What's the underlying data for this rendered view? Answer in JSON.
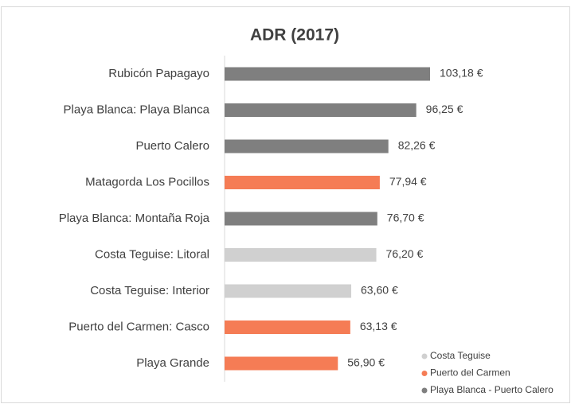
{
  "chart_data": {
    "type": "bar",
    "orientation": "horizontal",
    "title": "ADR (2017)",
    "categories": [
      "Rubicón Papagayo",
      "Playa Blanca: Playa Blanca",
      "Puerto Calero",
      "Matagorda Los Pocillos",
      "Playa Blanca: Montaña Roja",
      "Costa Teguise: Litoral",
      "Costa Teguise: Interior",
      "Puerto del Carmen: Casco",
      "Playa Grande"
    ],
    "values": [
      103.18,
      96.25,
      82.26,
      77.94,
      76.7,
      76.2,
      63.6,
      63.13,
      56.9
    ],
    "value_labels": [
      "103,18 €",
      "96,25 €",
      "82,26 €",
      "77,94 €",
      "76,70 €",
      "76,20 €",
      "63,60 €",
      "63,13 €",
      "56,90 €"
    ],
    "colors": [
      "#7f7f7f",
      "#7f7f7f",
      "#7f7f7f",
      "#f57c55",
      "#7f7f7f",
      "#d0d0d0",
      "#d0d0d0",
      "#f57c55",
      "#f57c55"
    ],
    "legend": [
      {
        "name": "Costa Teguise",
        "color": "#d0d0d0"
      },
      {
        "name": "Puerto del Carmen",
        "color": "#f57c55"
      },
      {
        "name": "Playa Blanca - Puerto Calero",
        "color": "#7f7f7f"
      }
    ]
  }
}
